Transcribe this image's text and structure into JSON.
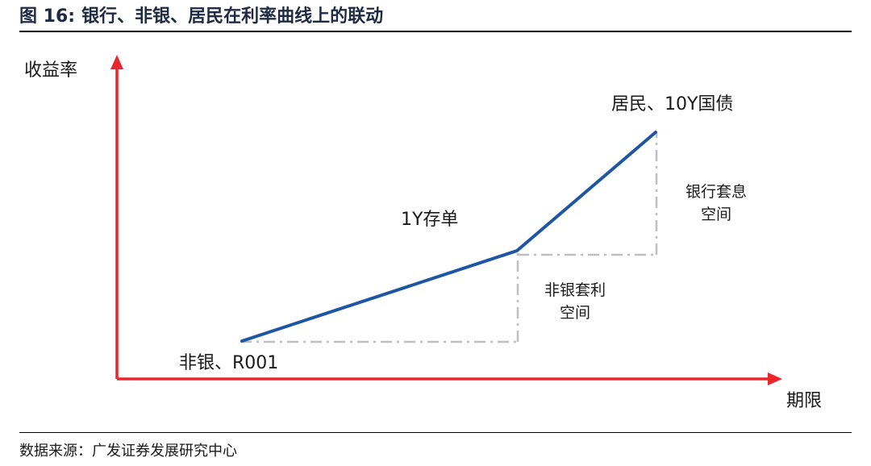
{
  "header": {
    "figure_number": "图 16:",
    "title": "银行、非银、居民在利率曲线上的联动"
  },
  "footer": {
    "source": "数据来源：广发证券发展研究中心"
  },
  "diagram": {
    "y_axis_label": "收益率",
    "x_axis_label": "期限",
    "point_labels": {
      "start": "非银、R001",
      "middle": "1Y存单",
      "end": "居民、10Y国债"
    },
    "gap_labels": {
      "nonbank_line1": "非银套利",
      "nonbank_line2": "空间",
      "bank_line1": "银行套息",
      "bank_line2": "空间"
    },
    "colors": {
      "axis": "#e8262c",
      "curve": "#1f56a3",
      "guide": "#bfbfbf"
    }
  }
}
